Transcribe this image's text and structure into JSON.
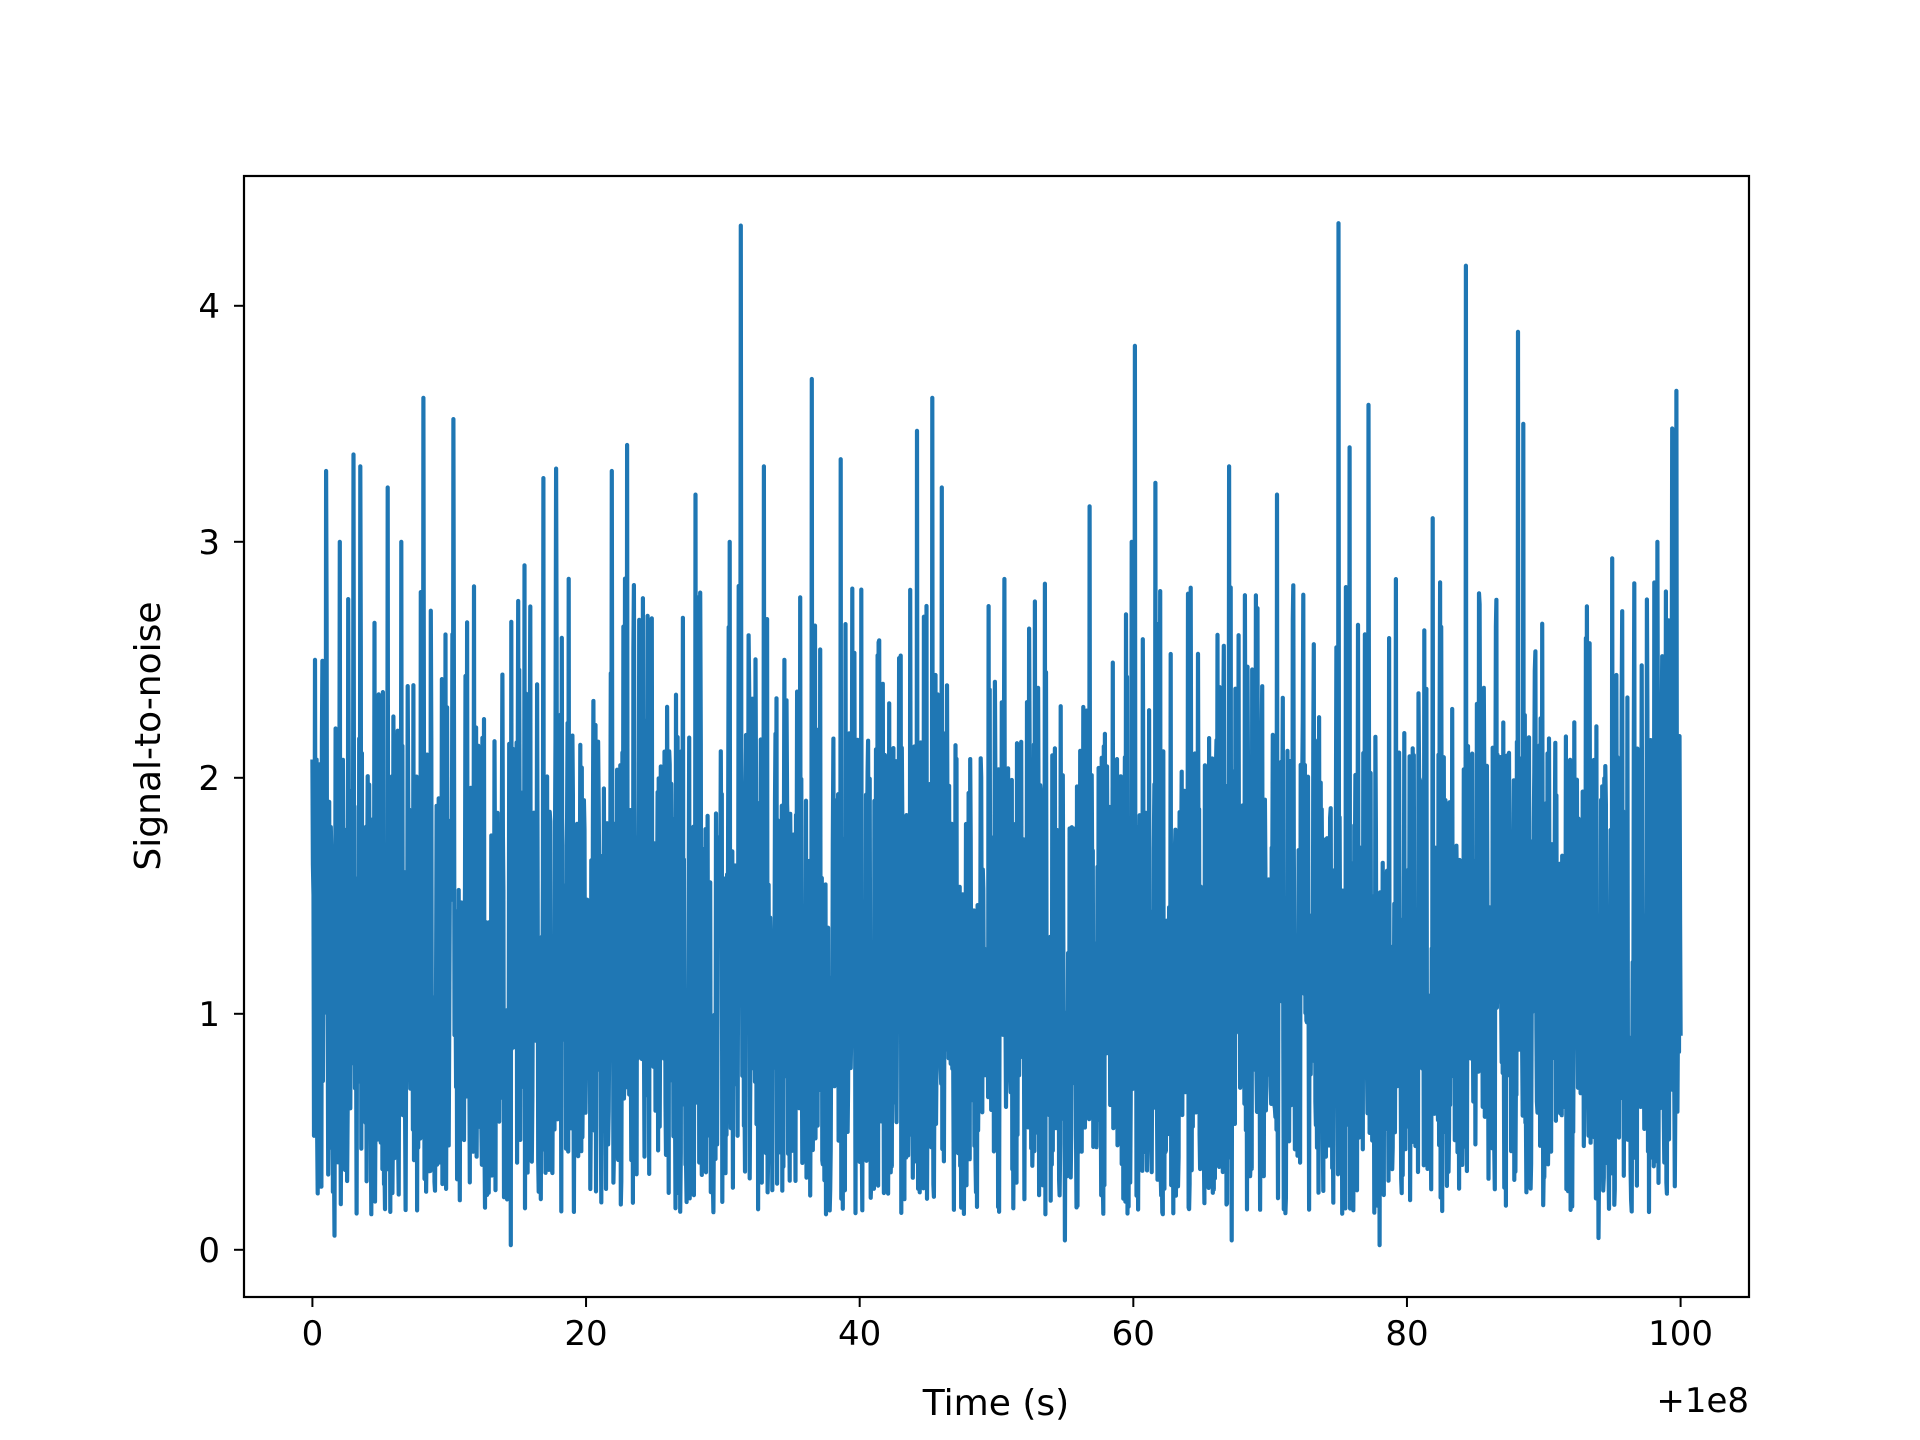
{
  "chart_data": {
    "type": "line",
    "title": "",
    "xlabel": "Time (s)",
    "ylabel": "Signal-to-noise",
    "x_offset_label": "+1e8",
    "xlim": [
      -5,
      105
    ],
    "ylim": [
      -0.2,
      4.55
    ],
    "xticks": [
      0,
      20,
      40,
      60,
      80,
      100
    ],
    "xtick_labels": [
      "0",
      "20",
      "40",
      "60",
      "80",
      "100"
    ],
    "yticks": [
      0,
      1,
      2,
      3,
      4
    ],
    "ytick_labels": [
      "0",
      "1",
      "2",
      "3",
      "4"
    ],
    "grid": false,
    "series": [
      {
        "color": "#1f77b4",
        "x_range": [
          0,
          100
        ],
        "noise_envelope": {
          "typical_min": 0.15,
          "typical_max": 2.4,
          "median": 1.0
        },
        "peaks": [
          {
            "x": 0.2,
            "y": 2.5
          },
          {
            "x": 1.0,
            "y": 3.3
          },
          {
            "x": 2.0,
            "y": 3.0
          },
          {
            "x": 3.0,
            "y": 3.37
          },
          {
            "x": 3.5,
            "y": 3.32
          },
          {
            "x": 5.5,
            "y": 3.23
          },
          {
            "x": 6.5,
            "y": 3.0
          },
          {
            "x": 8.1,
            "y": 3.61
          },
          {
            "x": 10.3,
            "y": 3.52
          },
          {
            "x": 15.5,
            "y": 2.9
          },
          {
            "x": 16.9,
            "y": 3.27
          },
          {
            "x": 17.8,
            "y": 3.31
          },
          {
            "x": 21.9,
            "y": 3.3
          },
          {
            "x": 23.0,
            "y": 3.41
          },
          {
            "x": 28.0,
            "y": 3.2
          },
          {
            "x": 30.5,
            "y": 3.0
          },
          {
            "x": 31.3,
            "y": 4.34
          },
          {
            "x": 33.0,
            "y": 3.32
          },
          {
            "x": 36.5,
            "y": 3.69
          },
          {
            "x": 38.6,
            "y": 3.35
          },
          {
            "x": 44.2,
            "y": 3.47
          },
          {
            "x": 45.3,
            "y": 3.61
          },
          {
            "x": 46.0,
            "y": 3.23
          },
          {
            "x": 56.8,
            "y": 3.15
          },
          {
            "x": 59.9,
            "y": 3.0
          },
          {
            "x": 60.1,
            "y": 3.83
          },
          {
            "x": 61.6,
            "y": 3.25
          },
          {
            "x": 67.0,
            "y": 3.32
          },
          {
            "x": 70.5,
            "y": 3.2
          },
          {
            "x": 75.0,
            "y": 4.35
          },
          {
            "x": 75.8,
            "y": 3.4
          },
          {
            "x": 77.2,
            "y": 3.58
          },
          {
            "x": 81.9,
            "y": 3.1
          },
          {
            "x": 84.3,
            "y": 4.17
          },
          {
            "x": 88.1,
            "y": 3.89
          },
          {
            "x": 88.5,
            "y": 3.5
          },
          {
            "x": 95.0,
            "y": 2.93
          },
          {
            "x": 98.3,
            "y": 3.0
          },
          {
            "x": 99.4,
            "y": 3.48
          },
          {
            "x": 99.7,
            "y": 3.64
          }
        ],
        "dips": [
          {
            "x": 1.6,
            "y": 0.06
          },
          {
            "x": 14.5,
            "y": 0.02
          },
          {
            "x": 55.0,
            "y": 0.04
          },
          {
            "x": 67.2,
            "y": 0.04
          },
          {
            "x": 78.0,
            "y": 0.02
          },
          {
            "x": 94.0,
            "y": 0.05
          }
        ]
      }
    ]
  }
}
